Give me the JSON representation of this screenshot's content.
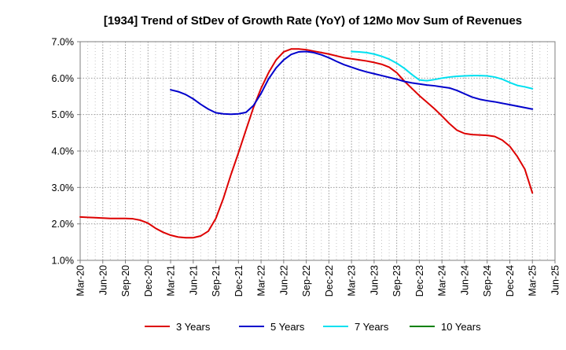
{
  "chart_data": {
    "type": "line",
    "title": "[1934]  Trend of StDev of Growth Rate (YoY) of 12Mo Mov Sum of Revenues",
    "xlabel": "",
    "ylabel": "",
    "ylim": [
      1.0,
      7.0
    ],
    "y_ticks": [
      1.0,
      2.0,
      3.0,
      4.0,
      5.0,
      6.0,
      7.0
    ],
    "y_tick_labels": [
      "1.0%",
      "2.0%",
      "3.0%",
      "4.0%",
      "5.0%",
      "6.0%",
      "7.0%"
    ],
    "x_tick_labels": [
      "Mar-20",
      "Jun-20",
      "Sep-20",
      "Dec-20",
      "Mar-21",
      "Jun-21",
      "Sep-21",
      "Dec-21",
      "Mar-22",
      "Jun-22",
      "Sep-22",
      "Dec-22",
      "Mar-23",
      "Jun-23",
      "Sep-23",
      "Dec-23",
      "Mar-24",
      "Jun-24",
      "Sep-24",
      "Dec-24",
      "Mar-25",
      "Jun-25"
    ],
    "x_months": [
      "2020-03",
      "2020-04",
      "2020-05",
      "2020-06",
      "2020-07",
      "2020-08",
      "2020-09",
      "2020-10",
      "2020-11",
      "2020-12",
      "2021-01",
      "2021-02",
      "2021-03",
      "2021-04",
      "2021-05",
      "2021-06",
      "2021-07",
      "2021-08",
      "2021-09",
      "2021-10",
      "2021-11",
      "2021-12",
      "2022-01",
      "2022-02",
      "2022-03",
      "2022-04",
      "2022-05",
      "2022-06",
      "2022-07",
      "2022-08",
      "2022-09",
      "2022-10",
      "2022-11",
      "2022-12",
      "2023-01",
      "2023-02",
      "2023-03",
      "2023-04",
      "2023-05",
      "2023-06",
      "2023-07",
      "2023-08",
      "2023-09",
      "2023-10",
      "2023-11",
      "2023-12",
      "2024-01",
      "2024-02",
      "2024-03",
      "2024-04",
      "2024-05",
      "2024-06",
      "2024-07",
      "2024-08",
      "2024-09",
      "2024-10",
      "2024-11",
      "2024-12",
      "2025-01",
      "2025-02",
      "2025-03"
    ],
    "grid": true,
    "legend_position": "bottom",
    "series": [
      {
        "name": "3 Years",
        "color": "#dd0000",
        "values": [
          2.19,
          2.18,
          2.17,
          2.16,
          2.15,
          2.15,
          2.15,
          2.14,
          2.1,
          2.02,
          1.88,
          1.77,
          1.69,
          1.64,
          1.62,
          1.62,
          1.67,
          1.8,
          2.15,
          2.7,
          3.35,
          3.95,
          4.58,
          5.2,
          5.72,
          6.15,
          6.5,
          6.72,
          6.8,
          6.8,
          6.78,
          6.74,
          6.7,
          6.66,
          6.61,
          6.56,
          6.53,
          6.5,
          6.47,
          6.43,
          6.38,
          6.3,
          6.15,
          5.92,
          5.72,
          5.52,
          5.34,
          5.16,
          4.96,
          4.75,
          4.57,
          4.48,
          4.45,
          4.44,
          4.43,
          4.4,
          4.3,
          4.13,
          3.85,
          3.5,
          2.85
        ]
      },
      {
        "name": "5 Years",
        "color": "#0000cc",
        "values": [
          null,
          null,
          null,
          null,
          null,
          null,
          null,
          null,
          null,
          null,
          null,
          null,
          5.68,
          5.63,
          5.55,
          5.43,
          5.28,
          5.15,
          5.05,
          5.02,
          5.01,
          5.02,
          5.06,
          5.25,
          5.58,
          5.98,
          6.28,
          6.5,
          6.65,
          6.72,
          6.73,
          6.7,
          6.64,
          6.56,
          6.46,
          6.37,
          6.3,
          6.23,
          6.17,
          6.12,
          6.07,
          6.02,
          5.97,
          5.91,
          5.87,
          5.84,
          5.81,
          5.79,
          5.76,
          5.73,
          5.66,
          5.57,
          5.48,
          5.42,
          5.38,
          5.35,
          5.31,
          5.27,
          5.23,
          5.19,
          5.15
        ]
      },
      {
        "name": "7 Years",
        "color": "#00e0f0",
        "values": [
          null,
          null,
          null,
          null,
          null,
          null,
          null,
          null,
          null,
          null,
          null,
          null,
          null,
          null,
          null,
          null,
          null,
          null,
          null,
          null,
          null,
          null,
          null,
          null,
          null,
          null,
          null,
          null,
          null,
          null,
          null,
          null,
          null,
          null,
          null,
          null,
          6.73,
          6.72,
          6.7,
          6.66,
          6.6,
          6.52,
          6.41,
          6.27,
          6.1,
          5.95,
          5.93,
          5.96,
          6.0,
          6.03,
          6.05,
          6.06,
          6.07,
          6.07,
          6.06,
          6.03,
          5.97,
          5.88,
          5.8,
          5.76,
          5.71
        ]
      },
      {
        "name": "10 Years",
        "color": "#008000",
        "values": []
      }
    ]
  }
}
